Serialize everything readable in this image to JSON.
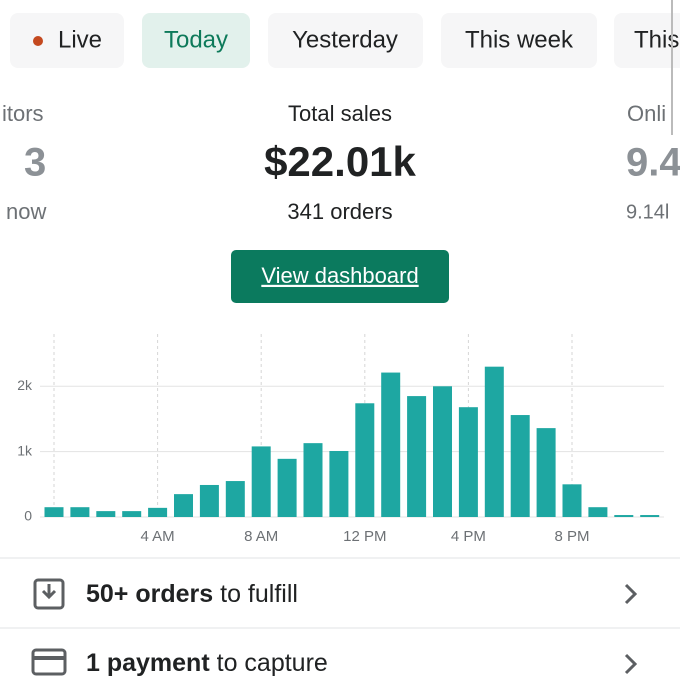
{
  "tabs": [
    {
      "label": "Live"
    },
    {
      "label": "Today"
    },
    {
      "label": "Yesterday"
    },
    {
      "label": "This week"
    },
    {
      "label": "This"
    }
  ],
  "stats": [
    {
      "label": "itors",
      "value": "3",
      "sub": "now"
    },
    {
      "label": "Total sales",
      "value": "$22.01k",
      "sub": "341 orders"
    },
    {
      "label": "Onli",
      "value": "9.4",
      "sub": "9.14l"
    }
  ],
  "button": "View dashboard",
  "chart_data": {
    "type": "bar",
    "color": "#1ea7a2",
    "categories": [
      null,
      null,
      null,
      null,
      "4 AM",
      null,
      null,
      null,
      "8 AM",
      null,
      null,
      null,
      "12 PM",
      null,
      null,
      null,
      "4 PM",
      null,
      null,
      null,
      "8 PM",
      null,
      null,
      null
    ],
    "values": [
      150,
      150,
      90,
      90,
      140,
      350,
      490,
      550,
      1080,
      890,
      1130,
      1010,
      1740,
      2210,
      1850,
      2000,
      1680,
      2300,
      1560,
      1360,
      500,
      150,
      30,
      30
    ],
    "ylim": [
      0,
      2800
    ],
    "yticks": [
      0,
      {
        "value": 1000,
        "label": "1k"
      },
      {
        "value": 2000,
        "label": "2k"
      }
    ],
    "grid": true
  },
  "tasks": [
    {
      "bold": "50+ orders",
      "rest": " to fulfill"
    },
    {
      "bold": "1 payment",
      "rest": " to capture"
    }
  ]
}
